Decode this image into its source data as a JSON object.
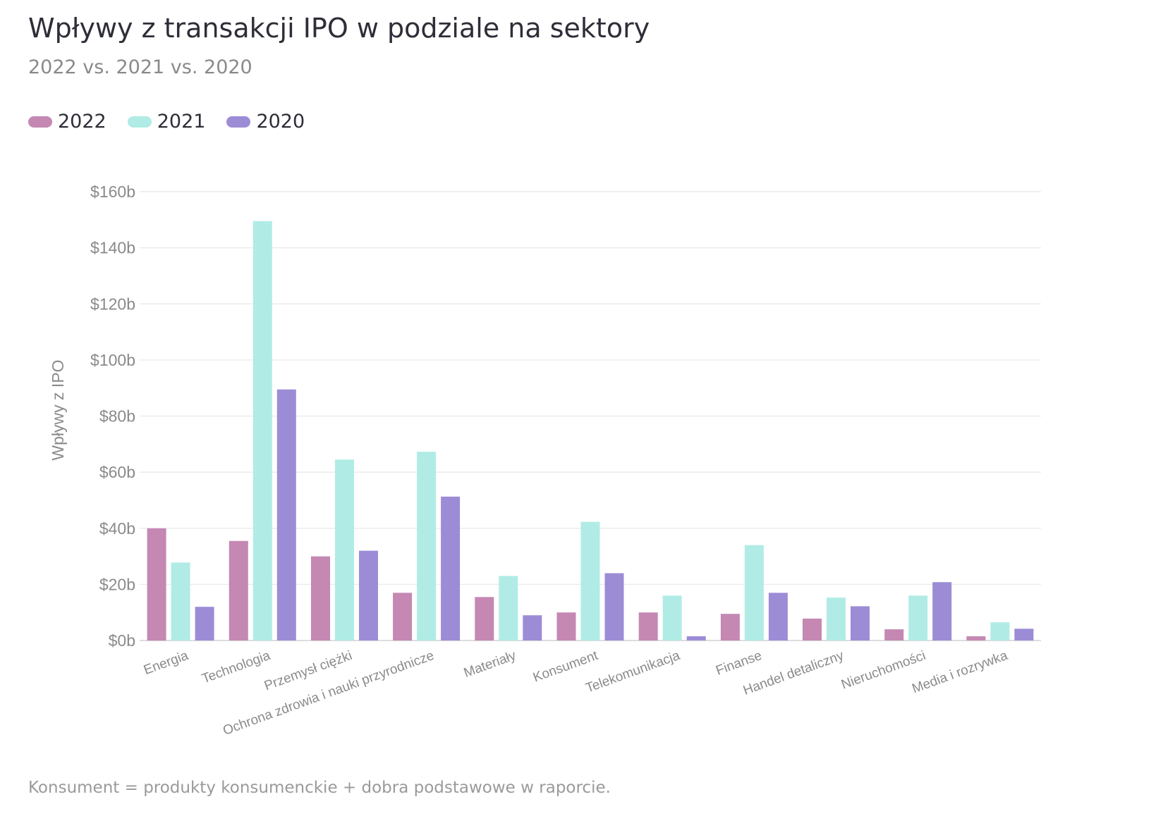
{
  "header": {
    "title": "Wpływy z transakcji IPO w podziale na sektory",
    "subtitle": "2022 vs. 2021 vs. 2020"
  },
  "footnote": "Konsument = produkty konsumenckie + dobra podstawowe w raporcie.",
  "colors": {
    "2022": "#c488b3",
    "2021": "#b0ece5",
    "2020": "#9c8cd6",
    "grid": "#ececec",
    "axis_text": "#8a8a8a"
  },
  "legend": [
    {
      "label": "2022",
      "color": "#c488b3"
    },
    {
      "label": "2021",
      "color": "#b0ece5"
    },
    {
      "label": "2020",
      "color": "#9c8cd6"
    }
  ],
  "chart_data": {
    "type": "bar",
    "title": "Wpływy z transakcji IPO w podziale na sektory",
    "subtitle": "2022 vs. 2021 vs. 2020",
    "ylabel": "Wpływy z IPO",
    "xlabel": "",
    "ylim": [
      0,
      160
    ],
    "yticks": [
      0,
      20,
      40,
      60,
      80,
      100,
      120,
      140,
      160
    ],
    "ytick_labels": [
      "$0b",
      "$20b",
      "$40b",
      "$60b",
      "$80b",
      "$100b",
      "$120b",
      "$140b",
      "$160b"
    ],
    "grid": true,
    "legend_position": "top-left",
    "categories": [
      "Energia",
      "Technologia",
      "Przemysł ciężki",
      "Ochrona zdrowia i nauki przyrodnicze",
      "Materiały",
      "Konsument",
      "Telekomunikacja",
      "Finanse",
      "Handel detaliczny",
      "Nieruchomości",
      "Media i rozrywka"
    ],
    "series": [
      {
        "name": "2022",
        "values": [
          40.0,
          35.5,
          30.0,
          17.0,
          15.5,
          10.0,
          10.0,
          9.5,
          7.8,
          4.0,
          1.5
        ]
      },
      {
        "name": "2021",
        "values": [
          27.8,
          149.5,
          64.5,
          67.3,
          23.0,
          42.3,
          16.0,
          34.0,
          15.3,
          16.0,
          6.5
        ]
      },
      {
        "name": "2020",
        "values": [
          12.0,
          89.5,
          32.0,
          51.3,
          9.0,
          24.0,
          1.5,
          17.0,
          12.2,
          20.8,
          4.2
        ]
      }
    ]
  }
}
